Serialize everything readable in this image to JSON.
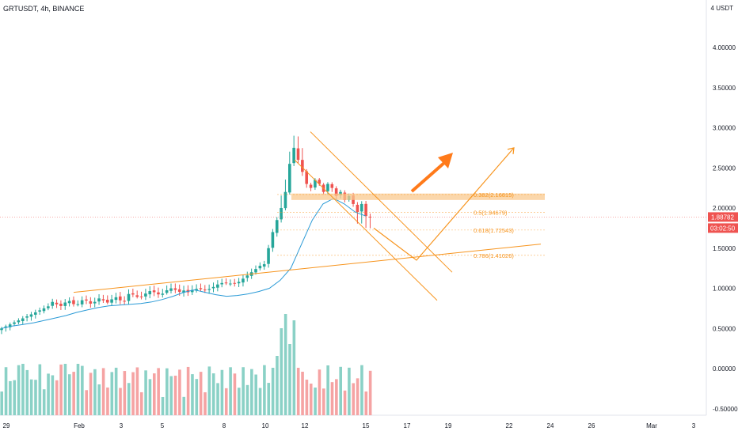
{
  "chart_data": {
    "type": "candlestick",
    "title": "GRTUSDT, 4h, BINANCE",
    "unit": "USDT",
    "y_axis": {
      "ticks": [
        "4.00000",
        "3.50000",
        "3.00000",
        "2.50000",
        "2.00000",
        "1.50000",
        "1.00000",
        "0.50000",
        "0.00000",
        "-0.50000"
      ],
      "tick_values": [
        4.0,
        3.5,
        3.0,
        2.5,
        2.0,
        1.5,
        1.0,
        0.5,
        0.0,
        -0.5
      ],
      "top_label": "4",
      "top_value": 4.45,
      "range": [
        -0.55,
        4.45
      ]
    },
    "x_axis": {
      "ticks": [
        "29",
        "Feb",
        "3",
        "5",
        "8",
        "10",
        "12",
        "15",
        "17",
        "19",
        "22",
        "24",
        "26",
        "Mar",
        "3"
      ]
    },
    "current_price": {
      "value": 1.88782,
      "label": "1.88782",
      "countdown": "03:02:50",
      "color": "#ef5350"
    },
    "fibonacci": [
      {
        "label": "0.382(2.16815)",
        "value": 2.16815
      },
      {
        "label": "0.5(1.94679)",
        "value": 1.94679
      },
      {
        "label": "0.618(1.72543)",
        "value": 1.72543
      },
      {
        "label": "0.786(1.41026)",
        "value": 1.41026
      }
    ],
    "resistance_zone": [
      2.1,
      2.18
    ],
    "colors": {
      "up": "#26a69a",
      "down": "#ef5350",
      "volume_up": "#8ad1c6",
      "volume_down": "#f5a3a3",
      "ma": "#2a9ad6",
      "annotation": "#f7941d",
      "zone": "#f9c98f"
    },
    "moving_average": [
      0.5,
      0.53,
      0.55,
      0.57,
      0.6,
      0.63,
      0.66,
      0.7,
      0.73,
      0.76,
      0.78,
      0.79,
      0.8,
      0.81,
      0.83,
      0.86,
      0.9,
      0.95,
      0.98,
      0.95,
      0.92,
      0.9,
      0.91,
      0.93,
      0.96,
      1.0,
      1.1,
      1.25,
      1.55,
      1.85,
      2.05,
      2.12,
      2.05,
      1.95,
      1.9
    ],
    "candles_note": "OHLC values estimated from the chart; generated in script"
  }
}
